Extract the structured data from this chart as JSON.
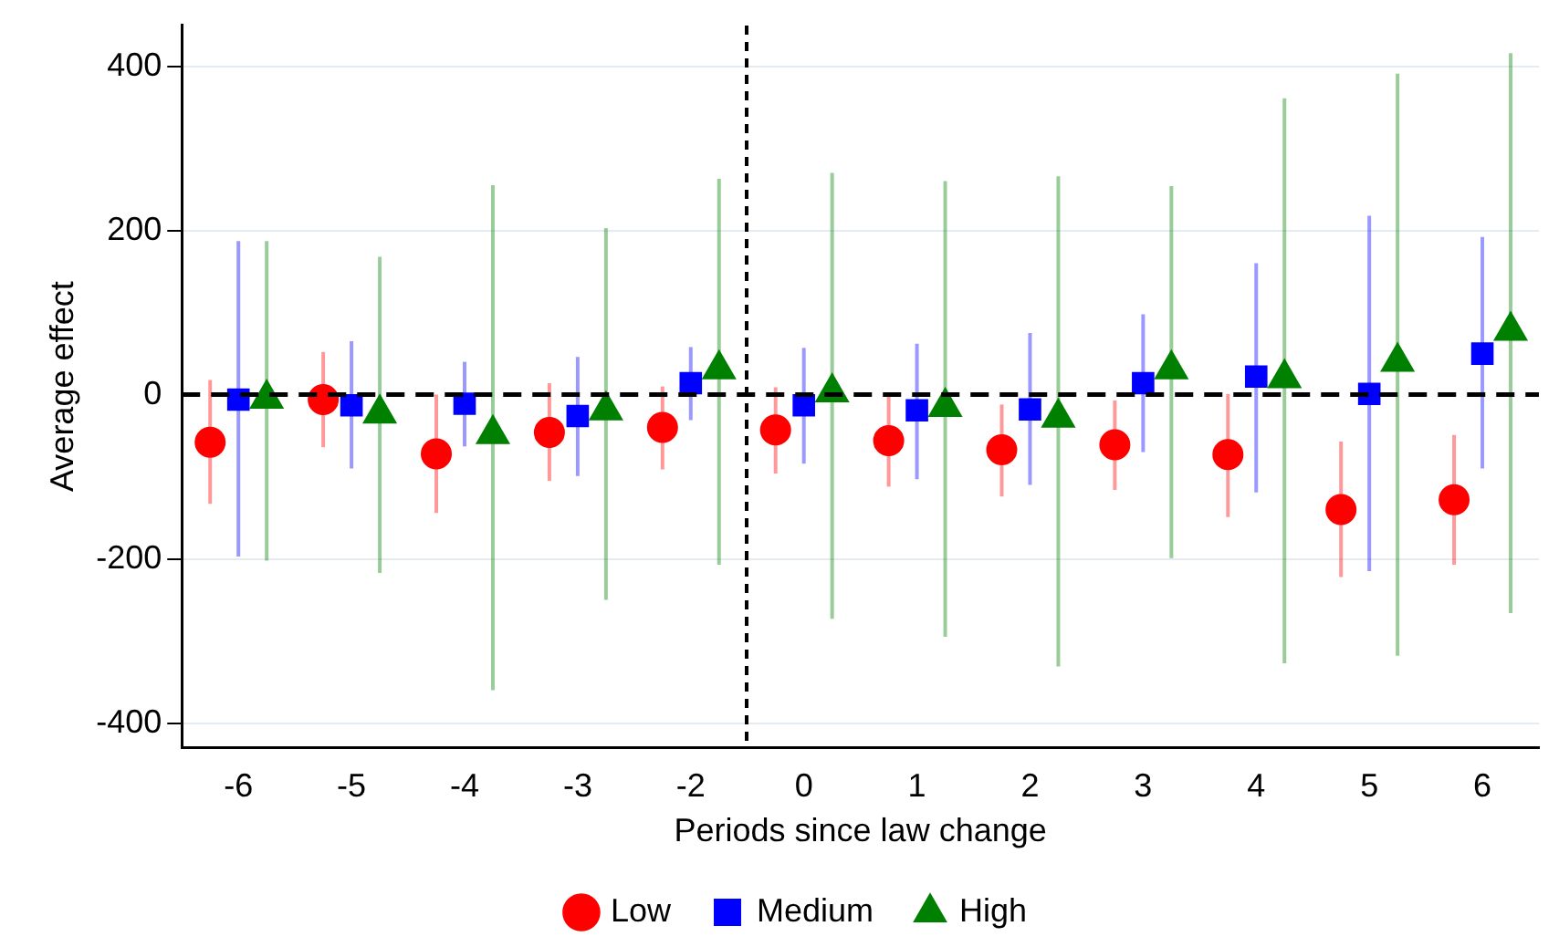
{
  "chart_data": {
    "type": "scatter",
    "xlabel": "Periods since law change",
    "ylabel": "Average effect",
    "categories": [
      "-6",
      "-5",
      "-4",
      "-3",
      "-2",
      "0",
      "1",
      "2",
      "3",
      "4",
      "5",
      "6"
    ],
    "series": [
      {
        "name": "Low",
        "color": "#ff0000",
        "marker": "circle",
        "values": [
          -58,
          -6,
          -72,
          -46,
          -40,
          -43,
          -56,
          -67,
          -61,
          -73,
          -140,
          -128
        ],
        "errors": [
          [
            -133,
            18
          ],
          [
            -64,
            52
          ],
          [
            -144,
            0
          ],
          [
            -105,
            14
          ],
          [
            -91,
            10
          ],
          [
            -96,
            9
          ],
          [
            -112,
            0
          ],
          [
            -124,
            -12
          ],
          [
            -116,
            -7
          ],
          [
            -149,
            1
          ],
          [
            -222,
            -57
          ],
          [
            -207,
            -49
          ]
        ]
      },
      {
        "name": "Medium",
        "color": "#0000ff",
        "marker": "square",
        "values": [
          -6,
          -13,
          -11,
          -26,
          14,
          -13,
          -19,
          -18,
          14,
          22,
          1,
          50
        ],
        "errors": [
          [
            -197,
            187
          ],
          [
            -90,
            65
          ],
          [
            -63,
            40
          ],
          [
            -99,
            46
          ],
          [
            -31,
            58
          ],
          [
            -84,
            57
          ],
          [
            -103,
            62
          ],
          [
            -110,
            75
          ],
          [
            -70,
            98
          ],
          [
            -119,
            160
          ],
          [
            -215,
            218
          ],
          [
            -90,
            192
          ]
        ]
      },
      {
        "name": "High",
        "color": "#008000",
        "marker": "triangle",
        "values": [
          -5,
          -23,
          -48,
          -19,
          31,
          3,
          -15,
          -28,
          31,
          20,
          40,
          78
        ],
        "errors": [
          [
            -202,
            187
          ],
          [
            -217,
            168
          ],
          [
            -360,
            255
          ],
          [
            -250,
            203
          ],
          [
            -207,
            263
          ],
          [
            -273,
            270
          ],
          [
            -295,
            260
          ],
          [
            -331,
            266
          ],
          [
            -199,
            254
          ],
          [
            -327,
            361
          ],
          [
            -318,
            391
          ],
          [
            -266,
            416
          ]
        ]
      }
    ],
    "ylim": [
      -430,
      450
    ],
    "yticks": [
      -400,
      -200,
      0,
      200,
      400
    ],
    "grid": "y",
    "legend": "bottom",
    "ref_lines": [
      {
        "axis": "y",
        "value": 0,
        "color": "#000000",
        "line_style": "dashed"
      }
    ]
  }
}
